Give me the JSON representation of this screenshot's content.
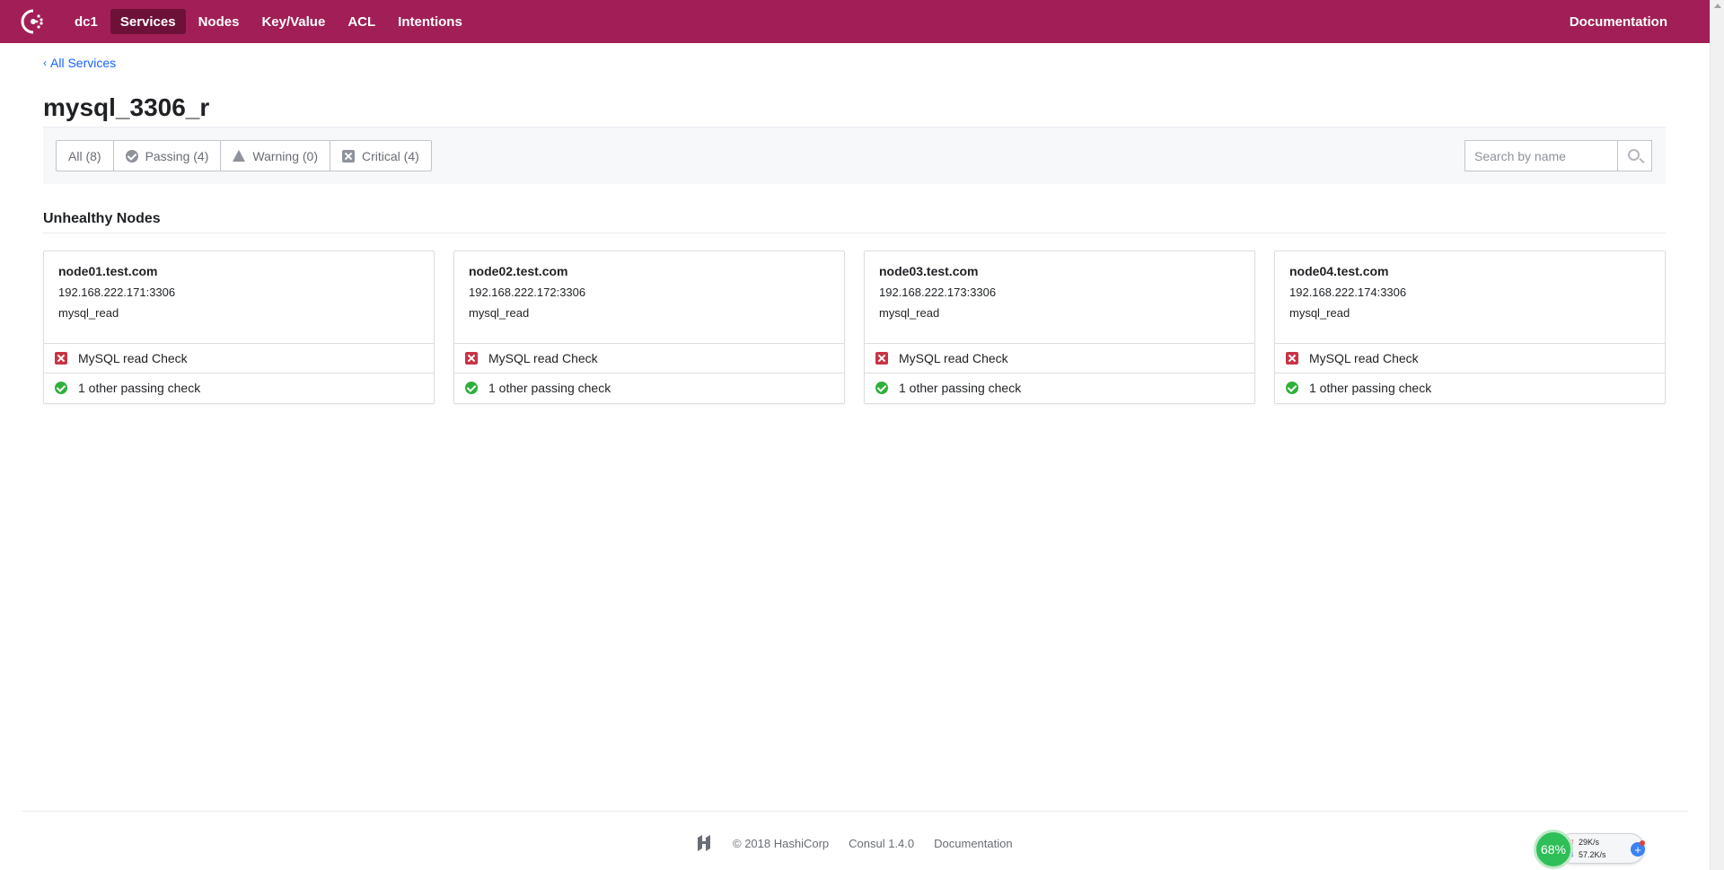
{
  "nav": {
    "datacenter": "dc1",
    "items": [
      "Services",
      "Nodes",
      "Key/Value",
      "ACL",
      "Intentions"
    ],
    "active": "Services",
    "documentation": "Documentation",
    "brand_color": "#a11f56"
  },
  "breadcrumb": {
    "label": "All Services"
  },
  "page": {
    "title": "mysql_3306_r"
  },
  "filters": {
    "all": "All (8)",
    "passing": "Passing (4)",
    "warning": "Warning (0)",
    "critical": "Critical (4)"
  },
  "search": {
    "placeholder": "Search by name",
    "value": ""
  },
  "section": {
    "heading": "Unhealthy Nodes"
  },
  "cards": [
    {
      "name": "node01.test.com",
      "address": "192.168.222.171:3306",
      "service": "mysql_read",
      "critical_check": "MySQL read Check",
      "passing_check": "1 other passing check"
    },
    {
      "name": "node02.test.com",
      "address": "192.168.222.172:3306",
      "service": "mysql_read",
      "critical_check": "MySQL read Check",
      "passing_check": "1 other passing check"
    },
    {
      "name": "node03.test.com",
      "address": "192.168.222.173:3306",
      "service": "mysql_read",
      "critical_check": "MySQL read Check",
      "passing_check": "1 other passing check"
    },
    {
      "name": "node04.test.com",
      "address": "192.168.222.174:3306",
      "service": "mysql_read",
      "critical_check": "MySQL read Check",
      "passing_check": "1 other passing check"
    }
  ],
  "footer": {
    "copyright": "© 2018 HashiCorp",
    "version": "Consul 1.4.0",
    "documentation": "Documentation"
  },
  "widget": {
    "percent": "68%",
    "upload": "29K/s",
    "download": "57.2K/s"
  },
  "colors": {
    "critical": "#c73445",
    "passing": "#2eb039",
    "link": "#1563ff"
  }
}
